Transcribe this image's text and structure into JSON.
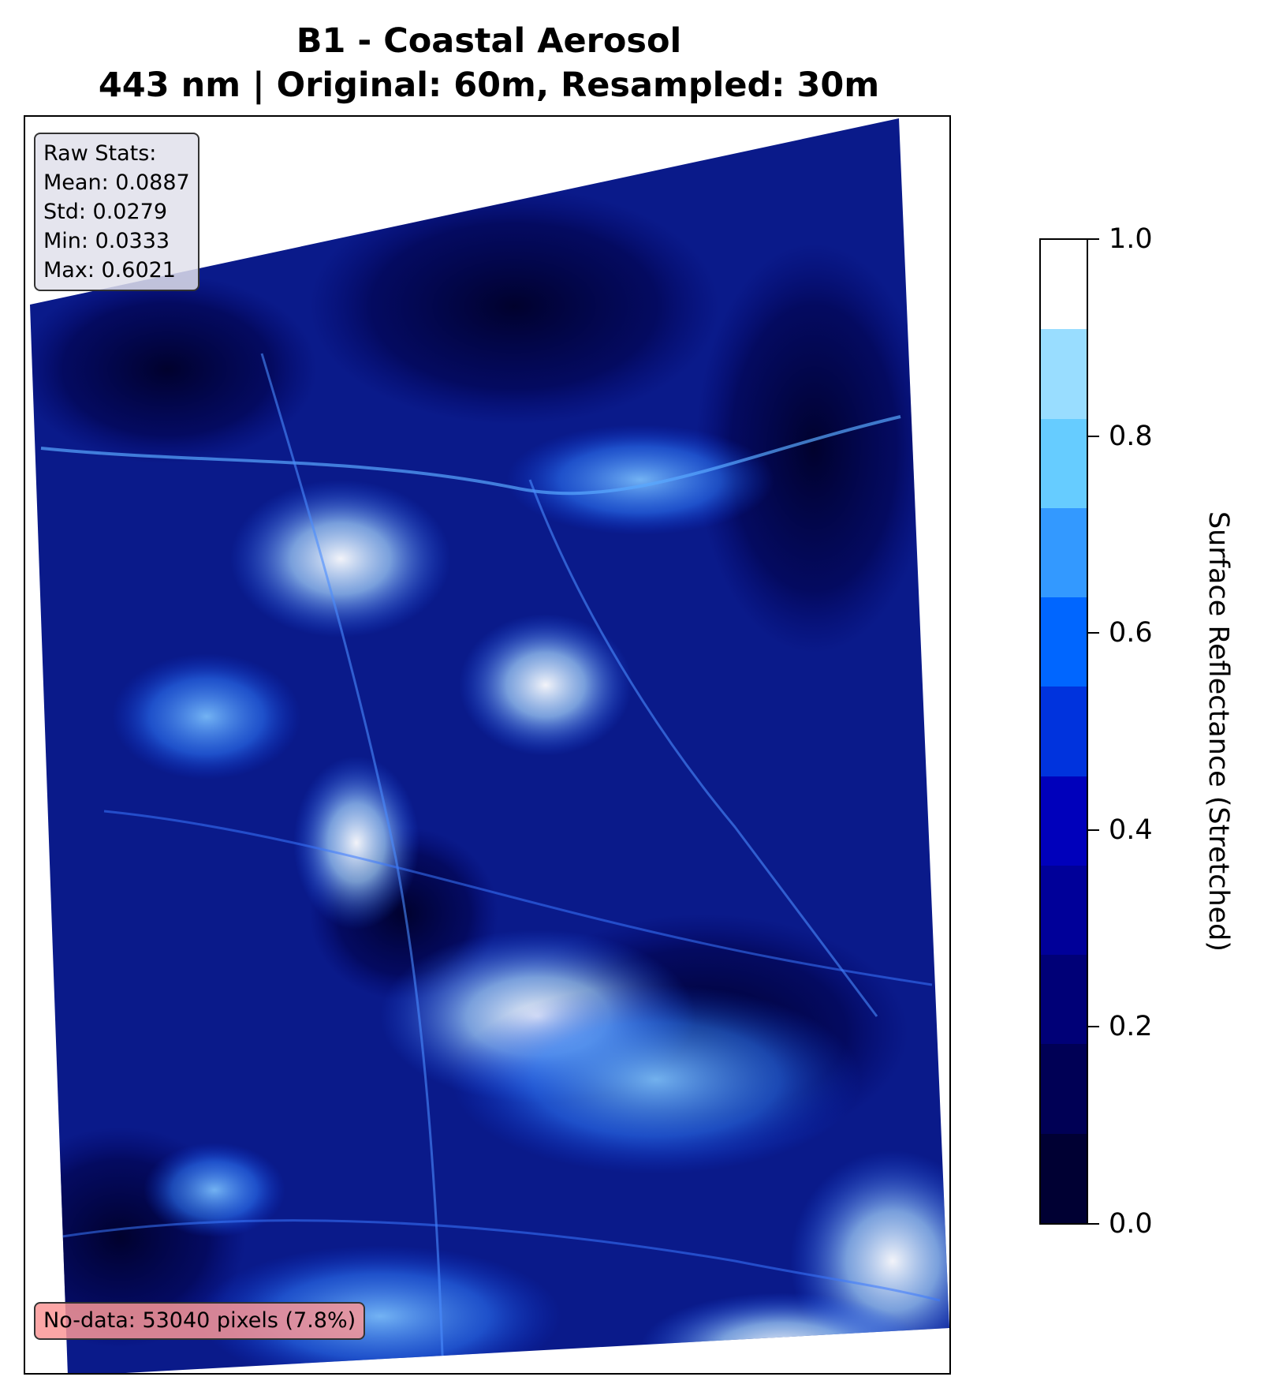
{
  "figure": {
    "title_line1": "B1 - Coastal Aerosol",
    "title_line2": "443 nm | Original: 60m, Resampled: 30m"
  },
  "stats": {
    "heading": "Raw Stats:",
    "mean": "Mean: 0.0887",
    "std": "Std: 0.0279",
    "min": "Min: 0.0333",
    "max": "Max: 0.6021"
  },
  "nodata": {
    "text": "No-data: 53040 pixels (7.8%)"
  },
  "colorbar": {
    "label": "Surface Reflectance (Stretched)",
    "range": [
      0.0,
      1.0
    ],
    "ticks": [
      "0.0",
      "0.2",
      "0.4",
      "0.6",
      "0.8",
      "1.0"
    ],
    "levels": 11,
    "colors": [
      "#000033",
      "#000055",
      "#000077",
      "#000099",
      "#0000bb",
      "#0033dd",
      "#0066ff",
      "#3399ff",
      "#66ccff",
      "#99ddff",
      "#cceeff",
      "#ffffff"
    ]
  },
  "image": {
    "colormap": "dark-navy-to-blue-to-white",
    "background_color": "#0a1a8a",
    "nodata_color": "#ffffff"
  }
}
